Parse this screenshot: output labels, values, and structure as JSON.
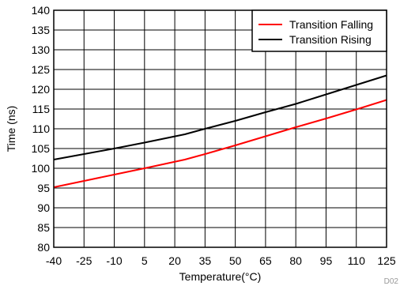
{
  "chart_data": {
    "type": "line",
    "xlabel": "Temperature(°C)",
    "ylabel": "Time (ns)",
    "xlim": [
      -40,
      125
    ],
    "ylim": [
      80,
      140
    ],
    "x_ticks": [
      -40,
      -25,
      -10,
      5,
      20,
      35,
      50,
      65,
      80,
      95,
      110,
      125
    ],
    "y_ticks": [
      80,
      85,
      90,
      95,
      100,
      105,
      110,
      115,
      120,
      125,
      130,
      135,
      140
    ],
    "grid": true,
    "legend_position": "top-right",
    "series": [
      {
        "name": "Transition Falling",
        "color": "#ff0000",
        "x": [
          -40,
          -25,
          -10,
          5,
          25,
          35,
          50,
          65,
          80,
          95,
          110,
          125
        ],
        "y": [
          95.2,
          96.8,
          98.4,
          100.0,
          102.2,
          103.6,
          105.8,
          108.1,
          110.4,
          112.6,
          114.9,
          117.3
        ]
      },
      {
        "name": "Transition Rising",
        "color": "#000000",
        "x": [
          -40,
          -25,
          -10,
          5,
          25,
          35,
          50,
          65,
          80,
          95,
          110,
          125
        ],
        "y": [
          102.2,
          103.6,
          105.0,
          106.5,
          108.6,
          110.0,
          112.0,
          114.2,
          116.3,
          118.7,
          121.1,
          123.5
        ]
      }
    ]
  },
  "figure_id": "D02"
}
